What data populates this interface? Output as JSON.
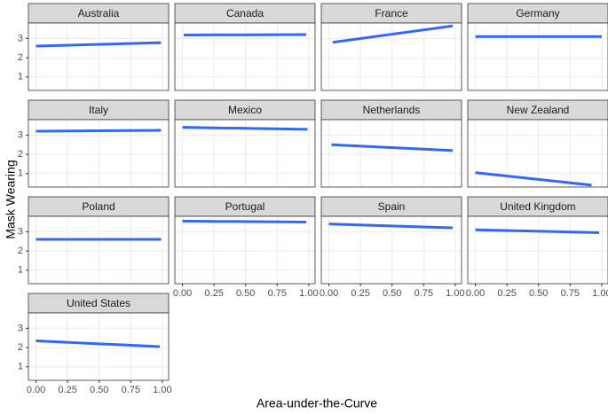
{
  "chart_data": {
    "type": "line",
    "x_label": "Area-under-the-Curve",
    "y_label": "Mask Wearing",
    "color": "#3366ff",
    "grid": true,
    "xlim": [
      -0.06,
      1.05
    ],
    "ylim": [
      0.3,
      3.8
    ],
    "xticks": [
      {
        "value": 0,
        "label": "0.00"
      },
      {
        "value": 0.25,
        "label": "0.25"
      },
      {
        "value": 0.5,
        "label": "0.50"
      },
      {
        "value": 0.75,
        "label": "0.75"
      },
      {
        "value": 1,
        "label": "1.00"
      }
    ],
    "yticks": [
      1,
      2,
      3
    ],
    "facets": [
      {
        "title": "Australia",
        "x": [
          0,
          0.99
        ],
        "values": [
          2.6,
          2.78
        ]
      },
      {
        "title": "Canada",
        "x": [
          0.01,
          0.98
        ],
        "values": [
          3.18,
          3.2
        ]
      },
      {
        "title": "France",
        "x": [
          0.03,
          0.98
        ],
        "values": [
          2.8,
          3.65
        ]
      },
      {
        "title": "Germany",
        "x": [
          0,
          1
        ],
        "values": [
          3.1,
          3.1
        ]
      },
      {
        "title": "Italy",
        "x": [
          0,
          0.99
        ],
        "values": [
          3.2,
          3.25
        ]
      },
      {
        "title": "Mexico",
        "x": [
          0,
          0.99
        ],
        "values": [
          3.4,
          3.3
        ]
      },
      {
        "title": "Netherlands",
        "x": [
          0.02,
          0.98
        ],
        "values": [
          2.5,
          2.2
        ]
      },
      {
        "title": "New Zealand",
        "x": [
          0,
          0.92
        ],
        "values": [
          1.05,
          0.4
        ]
      },
      {
        "title": "Poland",
        "x": [
          0,
          0.99
        ],
        "values": [
          2.6,
          2.6
        ]
      },
      {
        "title": "Portugal",
        "x": [
          0,
          0.98
        ],
        "values": [
          3.55,
          3.5
        ]
      },
      {
        "title": "Spain",
        "x": [
          0,
          0.98
        ],
        "values": [
          3.4,
          3.2
        ]
      },
      {
        "title": "United Kingdom",
        "x": [
          0,
          0.98
        ],
        "values": [
          3.1,
          2.95
        ]
      },
      {
        "title": "United States",
        "x": [
          0,
          0.98
        ],
        "values": [
          2.35,
          2.05
        ]
      }
    ]
  }
}
